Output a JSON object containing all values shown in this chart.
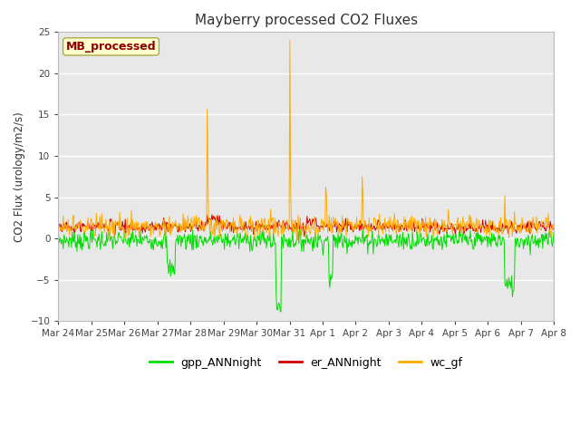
{
  "title": "Mayberry processed CO2 Fluxes",
  "ylabel": "CO2 Flux (urology/m2/s)",
  "ylim": [
    -10,
    25
  ],
  "yticks": [
    -10,
    -5,
    0,
    5,
    10,
    15,
    20,
    25
  ],
  "figure_bg": "#ffffff",
  "plot_bg": "#e8e8e8",
  "legend_labels": [
    "gpp_ANNnight",
    "er_ANNnight",
    "wc_gf"
  ],
  "legend_colors": [
    "#00dd00",
    "#cc0000",
    "#ffaa00"
  ],
  "annotation_text": "MB_processed",
  "annotation_color": "#8b0000",
  "annotation_bg": "#ffffcc",
  "annotation_edge": "#aaaa44",
  "n_points": 720,
  "tick_labels": [
    "Mar 24",
    "Mar 25",
    "Mar 26",
    "Mar 27",
    "Mar 28",
    "Mar 29",
    "Mar 30",
    "Mar 31",
    "Apr 1",
    "Apr 2",
    "Apr 3",
    "Apr 4",
    "Apr 5",
    "Apr 6",
    "Apr 7",
    "Apr 8"
  ],
  "gpp_base_mean": -0.2,
  "gpp_base_std": 0.6,
  "er_base_mean": 1.4,
  "er_base_std": 0.35,
  "wc_base_mean": 1.5,
  "wc_base_std": 0.65
}
